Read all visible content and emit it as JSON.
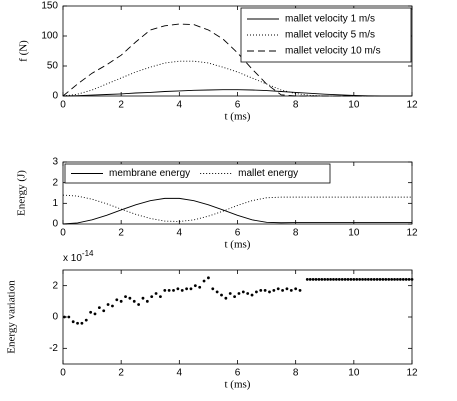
{
  "chart_data": [
    {
      "type": "line",
      "xlabel": "t (ms)",
      "ylabel": "f (N)",
      "x": [
        0,
        0.5,
        1,
        1.5,
        2,
        2.5,
        3,
        3.5,
        4,
        4.5,
        5,
        5.5,
        6,
        6.5,
        7,
        7.5,
        8,
        8.5,
        9,
        9.5,
        10,
        10.5,
        11,
        11.5,
        12
      ],
      "series": [
        {
          "name": "mallet velocity 1 m/s",
          "color": "#000000",
          "dash": "solid",
          "values": [
            0,
            0.5,
            1.5,
            2.5,
            3.5,
            5,
            6,
            7.5,
            8.5,
            9.5,
            10,
            10.5,
            10.5,
            10,
            9,
            7.5,
            6,
            4.5,
            3,
            2,
            1,
            0.3,
            0,
            0,
            0
          ]
        },
        {
          "name": "mallet velocity 5 m/s",
          "color": "#000000",
          "dash": "dotted",
          "values": [
            0,
            3,
            10,
            20,
            30,
            40,
            48,
            55,
            58,
            58,
            55,
            48,
            40,
            30,
            20,
            10,
            4,
            1,
            0,
            0,
            0,
            0,
            0,
            0,
            0
          ]
        },
        {
          "name": "mallet velocity 10 m/s",
          "color": "#000000",
          "dash": "dashed",
          "values": [
            0,
            20,
            38,
            52,
            68,
            90,
            110,
            117,
            120,
            119,
            110,
            95,
            72,
            45,
            20,
            2,
            0,
            0,
            0,
            0,
            0,
            0,
            0,
            0,
            0
          ]
        }
      ],
      "xlim": [
        0,
        12
      ],
      "xticks": [
        0,
        2,
        4,
        6,
        8,
        10,
        12
      ],
      "ylim": [
        0,
        150
      ],
      "yticks": [
        0,
        50,
        100,
        150
      ],
      "legend": "upper right",
      "legend_layout": "vertical"
    },
    {
      "type": "line",
      "xlabel": "t (ms)",
      "ylabel": "Energy (J)",
      "x": [
        0,
        0.5,
        1,
        1.5,
        2,
        2.5,
        3,
        3.5,
        4,
        4.5,
        5,
        5.5,
        6,
        6.5,
        7,
        7.5,
        8,
        8.5,
        9,
        9.5,
        10,
        10.5,
        11,
        11.5,
        12
      ],
      "series": [
        {
          "name": "membrane energy",
          "color": "#000000",
          "dash": "solid",
          "values": [
            0,
            0.05,
            0.2,
            0.42,
            0.68,
            0.93,
            1.13,
            1.24,
            1.24,
            1.13,
            0.93,
            0.68,
            0.42,
            0.2,
            0.08,
            0.06,
            0.07,
            0.07,
            0.07,
            0.07,
            0.07,
            0.07,
            0.07,
            0.07,
            0.07
          ]
        },
        {
          "name": "mallet energy",
          "color": "#000000",
          "dash": "dotted",
          "values": [
            1.4,
            1.35,
            1.2,
            0.98,
            0.72,
            0.47,
            0.27,
            0.14,
            0.12,
            0.2,
            0.38,
            0.62,
            0.9,
            1.13,
            1.27,
            1.3,
            1.3,
            1.3,
            1.3,
            1.3,
            1.3,
            1.3,
            1.3,
            1.3,
            1.3
          ]
        }
      ],
      "xlim": [
        0,
        12
      ],
      "xticks": [
        0,
        2,
        4,
        6,
        8,
        10,
        12
      ],
      "ylim": [
        0,
        3
      ],
      "yticks": [
        0,
        1,
        2,
        3
      ],
      "legend": "upper left",
      "legend_layout": "horizontal"
    },
    {
      "type": "scatter",
      "xlabel": "t (ms)",
      "ylabel": "Energy variation",
      "exponent_base": "x 10",
      "exponent": "-14",
      "x": [
        0.05,
        0.2,
        0.35,
        0.5,
        0.65,
        0.8,
        0.95,
        1.1,
        1.25,
        1.4,
        1.55,
        1.7,
        1.85,
        2.0,
        2.15,
        2.3,
        2.45,
        2.6,
        2.75,
        2.9,
        3.05,
        3.2,
        3.35,
        3.5,
        3.65,
        3.8,
        3.95,
        4.1,
        4.25,
        4.4,
        4.55,
        4.7,
        4.85,
        5.0,
        5.15,
        5.3,
        5.45,
        5.6,
        5.75,
        5.9,
        6.05,
        6.2,
        6.35,
        6.5,
        6.65,
        6.8,
        6.95,
        7.1,
        7.25,
        7.4,
        7.55,
        7.7,
        7.85,
        8.0,
        8.15,
        8.4,
        8.5,
        8.6,
        8.7,
        8.8,
        8.9,
        9.0,
        9.1,
        9.2,
        9.3,
        9.4,
        9.5,
        9.6,
        9.7,
        9.8,
        9.9,
        10.0,
        10.1,
        10.2,
        10.3,
        10.4,
        10.5,
        10.6,
        10.7,
        10.8,
        10.9,
        11.0,
        11.1,
        11.2,
        11.3,
        11.4,
        11.5,
        11.6,
        11.7,
        11.8,
        11.9,
        12.0
      ],
      "values": [
        0,
        0,
        -0.3,
        -0.4,
        -0.4,
        -0.2,
        0.3,
        0.2,
        0.6,
        0.4,
        0.8,
        0.7,
        1.1,
        1.0,
        1.3,
        1.2,
        1.0,
        0.8,
        1.2,
        1.0,
        1.3,
        1.5,
        1.3,
        1.7,
        1.7,
        1.7,
        1.8,
        1.7,
        1.8,
        1.8,
        2.0,
        1.9,
        2.3,
        2.5,
        1.8,
        1.6,
        1.4,
        1.2,
        1.5,
        1.3,
        1.5,
        1.6,
        1.5,
        1.4,
        1.6,
        1.7,
        1.7,
        1.6,
        1.7,
        1.8,
        1.7,
        1.8,
        1.7,
        1.8,
        1.7,
        2.4,
        2.4,
        2.4,
        2.4,
        2.4,
        2.4,
        2.4,
        2.4,
        2.4,
        2.4,
        2.4,
        2.4,
        2.4,
        2.4,
        2.4,
        2.4,
        2.4,
        2.4,
        2.4,
        2.4,
        2.4,
        2.4,
        2.4,
        2.4,
        2.4,
        2.4,
        2.4,
        2.4,
        2.4,
        2.4,
        2.4,
        2.4,
        2.4,
        2.4,
        2.4,
        2.4,
        2.4
      ],
      "color": "#000000",
      "xlim": [
        0,
        12
      ],
      "xticks": [
        0,
        2,
        4,
        6,
        8,
        10,
        12
      ],
      "ylim": [
        -3,
        3
      ],
      "yticks": [
        -2,
        0,
        2
      ]
    }
  ]
}
